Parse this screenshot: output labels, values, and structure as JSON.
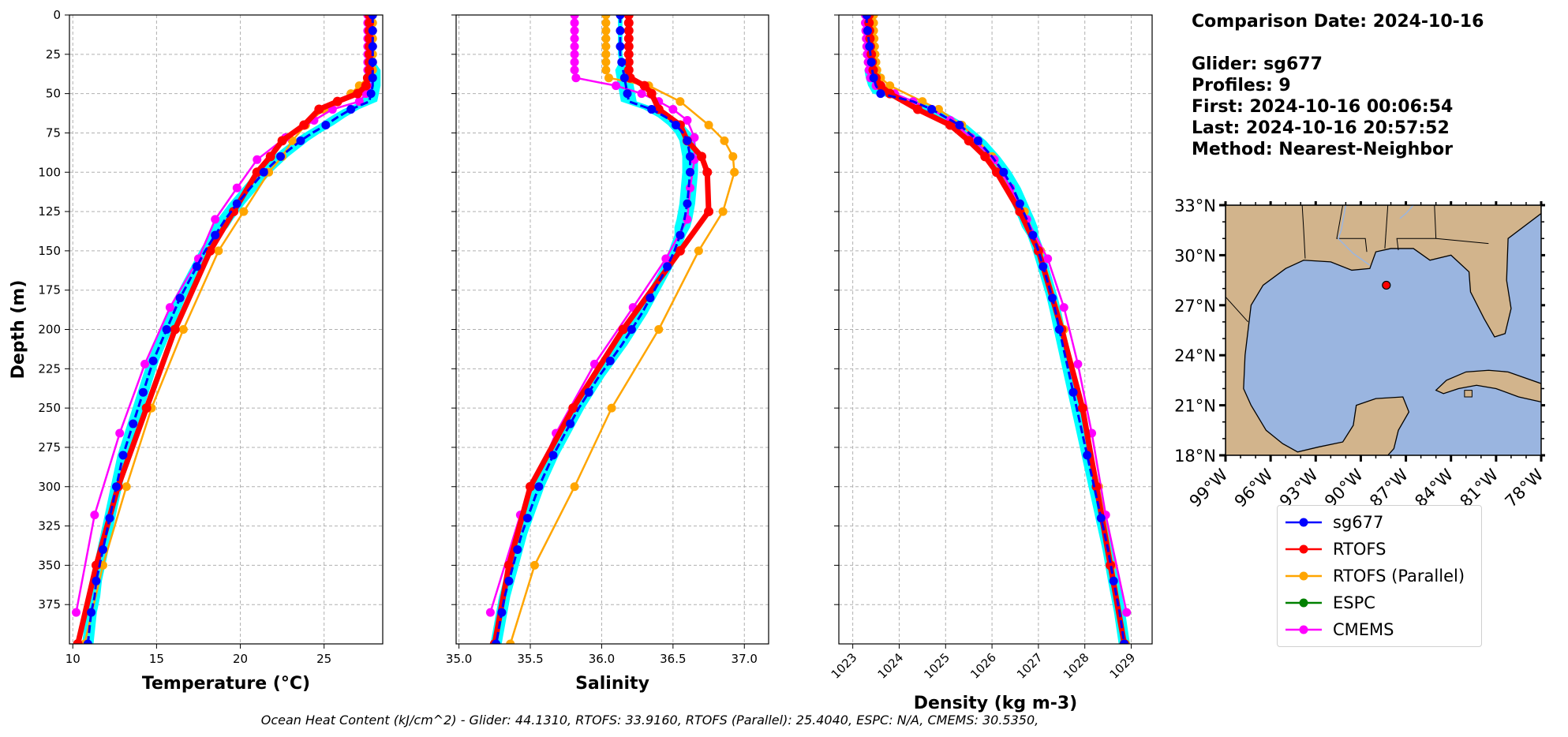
{
  "info": {
    "comparison_date": "Comparison Date: 2024-10-16",
    "glider": "Glider: sg677",
    "profiles": "Profiles: 9",
    "first": "First: 2024-10-16 00:06:54",
    "last": "Last: 2024-10-16 20:57:52",
    "method": "Method: Nearest-Neighbor"
  },
  "footer": "Ocean Heat Content (kJ/cm^2) - Glider: 44.1310,  RTOFS: 33.9160,  RTOFS (Parallel): 25.4040,  ESPC: N/A,  CMEMS: 30.5350,",
  "colors": {
    "sg677": "#0000ff",
    "RTOFS": "#ff0000",
    "RTOFS (Parallel)": "#ffa500",
    "ESPC": "#008000",
    "CMEMS": "#ff00ff",
    "glider_cloud": "#00ffff",
    "land": "#d2b48c",
    "ocean": "#9ab5e0"
  },
  "legend": [
    {
      "name": "sg677",
      "color": "#0000ff"
    },
    {
      "name": "RTOFS",
      "color": "#ff0000"
    },
    {
      "name": "RTOFS (Parallel)",
      "color": "#ffa500"
    },
    {
      "name": "ESPC",
      "color": "#008000"
    },
    {
      "name": "CMEMS",
      "color": "#ff00ff"
    }
  ],
  "chart_data": [
    {
      "type": "line",
      "xlabel": "Temperature (°C)",
      "ylabel": "Depth (m)",
      "xlim": [
        9.8,
        28.5
      ],
      "ylim": [
        400,
        0
      ],
      "xticks": [
        10,
        15,
        20,
        25
      ],
      "yticks": [
        0,
        25,
        50,
        75,
        100,
        125,
        150,
        175,
        200,
        225,
        250,
        275,
        300,
        325,
        350,
        375
      ],
      "grid": true,
      "series": [
        {
          "name": "sg677",
          "depth": [
            0,
            5,
            10,
            15,
            20,
            25,
            30,
            35,
            40,
            45,
            50,
            55,
            60,
            65,
            70,
            75,
            80,
            85,
            90,
            95,
            100,
            110,
            120,
            130,
            140,
            150,
            160,
            170,
            180,
            190,
            200,
            210,
            220,
            230,
            240,
            250,
            260,
            270,
            280,
            290,
            300,
            310,
            320,
            330,
            340,
            350,
            360,
            370,
            380,
            390,
            400
          ],
          "values": [
            27.9,
            27.9,
            27.9,
            27.9,
            27.9,
            27.9,
            27.9,
            27.9,
            27.9,
            27.9,
            27.8,
            27.7,
            26.6,
            25.8,
            25.1,
            24.3,
            23.6,
            23.0,
            22.4,
            21.9,
            21.4,
            20.6,
            19.8,
            19.1,
            18.5,
            17.9,
            17.4,
            16.9,
            16.4,
            16.0,
            15.6,
            15.2,
            14.8,
            14.5,
            14.2,
            13.9,
            13.6,
            13.3,
            13.0,
            12.8,
            12.6,
            12.4,
            12.2,
            12.0,
            11.8,
            11.6,
            11.4,
            11.3,
            11.1,
            11.0,
            10.9
          ]
        },
        {
          "name": "RTOFS",
          "depth": [
            0,
            5,
            10,
            15,
            20,
            25,
            30,
            35,
            40,
            45,
            50,
            55,
            60,
            70,
            80,
            90,
            100,
            125,
            150,
            200,
            250,
            300,
            350,
            400
          ],
          "values": [
            27.7,
            27.7,
            27.7,
            27.7,
            27.7,
            27.7,
            27.7,
            27.7,
            27.6,
            27.5,
            27.0,
            25.8,
            24.7,
            23.8,
            22.5,
            21.8,
            21.0,
            19.6,
            18.2,
            16.1,
            14.4,
            12.7,
            11.4,
            10.3
          ]
        },
        {
          "name": "RTOFS (Parallel)",
          "depth": [
            0,
            5,
            10,
            15,
            20,
            25,
            30,
            35,
            40,
            45,
            50,
            55,
            60,
            70,
            80,
            90,
            100,
            125,
            150,
            200,
            250,
            300,
            350,
            400
          ],
          "values": [
            27.9,
            27.9,
            27.9,
            27.9,
            27.9,
            27.9,
            27.9,
            27.9,
            27.6,
            27.1,
            26.6,
            25.8,
            25.0,
            23.9,
            23.1,
            22.5,
            21.7,
            20.2,
            18.7,
            16.6,
            14.7,
            13.2,
            11.8,
            10.7
          ]
        },
        {
          "name": "CMEMS",
          "depth": [
            0,
            5,
            10,
            15,
            20,
            25,
            30,
            35,
            40,
            45,
            50,
            55,
            60,
            67,
            78,
            92,
            110,
            130,
            155,
            186,
            222,
            266,
            318,
            380
          ],
          "values": [
            27.6,
            27.6,
            27.6,
            27.6,
            27.6,
            27.6,
            27.6,
            27.6,
            27.6,
            27.6,
            27.5,
            27.1,
            25.5,
            24.4,
            22.7,
            21.0,
            19.8,
            18.5,
            17.5,
            15.8,
            14.3,
            12.8,
            11.3,
            10.2
          ]
        }
      ]
    },
    {
      "type": "line",
      "xlabel": "Salinity",
      "ylabel": "",
      "xlim": [
        34.98,
        37.17
      ],
      "ylim": [
        400,
        0
      ],
      "xticks": [
        35.0,
        35.5,
        36.0,
        36.5,
        37.0
      ],
      "grid": true,
      "series": [
        {
          "name": "sg677",
          "depth": [
            0,
            5,
            10,
            15,
            20,
            25,
            30,
            35,
            40,
            45,
            50,
            55,
            60,
            65,
            70,
            75,
            80,
            85,
            90,
            95,
            100,
            110,
            120,
            130,
            140,
            150,
            160,
            170,
            180,
            190,
            200,
            210,
            220,
            230,
            240,
            250,
            260,
            270,
            280,
            290,
            300,
            310,
            320,
            330,
            340,
            350,
            360,
            370,
            380,
            390,
            400
          ],
          "values": [
            36.13,
            36.13,
            36.13,
            36.13,
            36.13,
            36.13,
            36.14,
            36.15,
            36.16,
            36.17,
            36.18,
            36.19,
            36.35,
            36.45,
            36.52,
            36.57,
            36.6,
            36.61,
            36.62,
            36.62,
            36.62,
            36.61,
            36.6,
            36.58,
            36.55,
            36.51,
            36.46,
            36.4,
            36.34,
            36.28,
            36.21,
            36.14,
            36.06,
            35.98,
            35.91,
            35.84,
            35.78,
            35.72,
            35.66,
            35.61,
            35.56,
            35.52,
            35.48,
            35.44,
            35.41,
            35.38,
            35.35,
            35.32,
            35.3,
            35.28,
            35.26
          ]
        },
        {
          "name": "RTOFS",
          "depth": [
            0,
            5,
            10,
            15,
            20,
            25,
            30,
            35,
            40,
            45,
            50,
            60,
            70,
            80,
            90,
            100,
            125,
            150,
            200,
            250,
            300,
            350,
            400
          ],
          "values": [
            36.19,
            36.19,
            36.19,
            36.19,
            36.19,
            36.19,
            36.19,
            36.19,
            36.2,
            36.3,
            36.35,
            36.4,
            36.55,
            36.6,
            36.7,
            36.74,
            36.75,
            36.55,
            36.15,
            35.8,
            35.5,
            35.35,
            35.25
          ]
        },
        {
          "name": "RTOFS (Parallel)",
          "depth": [
            0,
            5,
            10,
            15,
            20,
            25,
            30,
            35,
            40,
            45,
            55,
            70,
            80,
            90,
            100,
            125,
            150,
            200,
            250,
            300,
            350,
            400
          ],
          "values": [
            36.03,
            36.03,
            36.03,
            36.03,
            36.03,
            36.03,
            36.03,
            36.03,
            36.05,
            36.33,
            36.55,
            36.75,
            36.86,
            36.92,
            36.93,
            36.85,
            36.68,
            36.4,
            36.07,
            35.81,
            35.53,
            35.36
          ]
        },
        {
          "name": "CMEMS",
          "depth": [
            0,
            5,
            10,
            15,
            20,
            25,
            30,
            35,
            40,
            45,
            50,
            55,
            60,
            67,
            78,
            92,
            110,
            130,
            155,
            186,
            222,
            266,
            318,
            380
          ],
          "values": [
            35.81,
            35.81,
            35.81,
            35.81,
            35.81,
            35.81,
            35.81,
            35.81,
            35.82,
            36.1,
            36.28,
            36.4,
            36.5,
            36.6,
            36.65,
            36.65,
            36.62,
            36.6,
            36.45,
            36.22,
            35.95,
            35.68,
            35.43,
            35.22
          ]
        }
      ]
    },
    {
      "type": "line",
      "xlabel": "Density (kg m-3)",
      "ylabel": "",
      "xlim": [
        1022.7,
        1029.45
      ],
      "ylim": [
        400,
        0
      ],
      "xticks": [
        1023,
        1024,
        1025,
        1026,
        1027,
        1028,
        1029
      ],
      "grid": true,
      "series": [
        {
          "name": "sg677",
          "depth": [
            0,
            5,
            10,
            15,
            20,
            25,
            30,
            35,
            40,
            45,
            50,
            55,
            60,
            65,
            70,
            75,
            80,
            90,
            100,
            110,
            120,
            130,
            140,
            150,
            160,
            170,
            180,
            190,
            200,
            220,
            240,
            260,
            280,
            300,
            320,
            340,
            360,
            380,
            400
          ],
          "values": [
            1023.3,
            1023.3,
            1023.32,
            1023.34,
            1023.36,
            1023.38,
            1023.4,
            1023.42,
            1023.45,
            1023.5,
            1023.6,
            1024.3,
            1024.7,
            1025.0,
            1025.3,
            1025.5,
            1025.7,
            1026.0,
            1026.25,
            1026.45,
            1026.6,
            1026.75,
            1026.88,
            1027.0,
            1027.1,
            1027.2,
            1027.3,
            1027.38,
            1027.45,
            1027.6,
            1027.75,
            1027.9,
            1028.05,
            1028.2,
            1028.35,
            1028.5,
            1028.62,
            1028.75,
            1028.85
          ]
        },
        {
          "name": "RTOFS",
          "depth": [
            0,
            5,
            10,
            15,
            20,
            25,
            30,
            35,
            40,
            45,
            50,
            60,
            70,
            80,
            90,
            100,
            125,
            150,
            200,
            250,
            300,
            350,
            400
          ],
          "values": [
            1023.35,
            1023.35,
            1023.36,
            1023.37,
            1023.38,
            1023.4,
            1023.42,
            1023.44,
            1023.5,
            1023.6,
            1023.8,
            1024.4,
            1025.1,
            1025.5,
            1025.85,
            1026.1,
            1026.6,
            1027.0,
            1027.5,
            1027.95,
            1028.25,
            1028.55,
            1028.85
          ]
        },
        {
          "name": "RTOFS (Parallel)",
          "depth": [
            0,
            5,
            10,
            15,
            20,
            25,
            30,
            35,
            40,
            45,
            55,
            60,
            70,
            80,
            90,
            100,
            125,
            150,
            200,
            250,
            300,
            350,
            400
          ],
          "values": [
            1023.45,
            1023.45,
            1023.45,
            1023.46,
            1023.47,
            1023.48,
            1023.5,
            1023.52,
            1023.6,
            1023.8,
            1024.5,
            1024.85,
            1025.35,
            1025.7,
            1026.0,
            1026.2,
            1026.7,
            1027.05,
            1027.55,
            1027.95,
            1028.3,
            1028.6,
            1028.88
          ]
        },
        {
          "name": "CMEMS",
          "depth": [
            0,
            5,
            10,
            15,
            20,
            25,
            30,
            35,
            40,
            45,
            50,
            55,
            60,
            67,
            78,
            92,
            110,
            130,
            155,
            186,
            222,
            266,
            318,
            380
          ],
          "values": [
            1023.27,
            1023.27,
            1023.28,
            1023.29,
            1023.3,
            1023.31,
            1023.33,
            1023.35,
            1023.38,
            1023.5,
            1023.9,
            1024.3,
            1024.7,
            1025.1,
            1025.55,
            1026.05,
            1026.4,
            1026.75,
            1027.2,
            1027.55,
            1027.85,
            1028.15,
            1028.45,
            1028.9
          ]
        }
      ]
    },
    {
      "type": "map",
      "region": "Gulf of Mexico",
      "lon_range": [
        -99,
        -78
      ],
      "lat_range": [
        18,
        33
      ],
      "xticks": [
        "99°W",
        "96°W",
        "93°W",
        "90°W",
        "87°W",
        "84°W",
        "81°W",
        "78°W"
      ],
      "yticks": [
        "18°N",
        "21°N",
        "24°N",
        "27°N",
        "30°N",
        "33°N"
      ],
      "marker": {
        "lon": -88.3,
        "lat": 28.2,
        "color": "#ff0000"
      }
    }
  ]
}
